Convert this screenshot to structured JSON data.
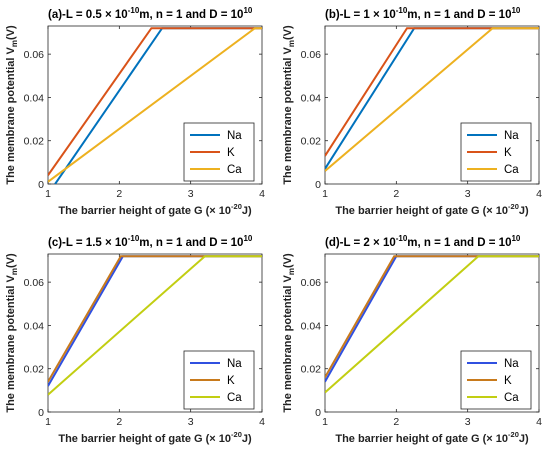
{
  "chart_data": [
    {
      "type": "line",
      "title": "(a)-L = 0.5 × 10",
      "title_exp": "-10",
      "title_rest": "m, n = 1 and  D = 10",
      "title_exp2": "10",
      "xlabel": "The barrier height of gate G (× 10",
      "xlabel_exp": "-20",
      "xlabel_end": "J)",
      "ylabel": "The membrane potential V",
      "ylabel_sub": "m",
      "ylabel_end": "(V)",
      "xlim": [
        1,
        4
      ],
      "ylim": [
        0,
        0.073
      ],
      "xticks": [
        "1",
        "2",
        "3",
        "4"
      ],
      "yticks": [
        "0",
        "0.02",
        "0.04",
        "0.06"
      ],
      "legend_position": "right",
      "series": [
        {
          "name": "Na",
          "color": "#0072BD",
          "points": [
            [
              1.1,
              0
            ],
            [
              2.6,
              0.072
            ],
            [
              4,
              0.072
            ]
          ]
        },
        {
          "name": "K",
          "color": "#D95319",
          "points": [
            [
              1,
              0.004
            ],
            [
              2.45,
              0.072
            ],
            [
              4,
              0.072
            ]
          ]
        },
        {
          "name": "Ca",
          "color": "#EDB120",
          "points": [
            [
              1,
              0.001
            ],
            [
              3.9,
              0.072
            ],
            [
              4,
              0.072
            ]
          ]
        }
      ]
    },
    {
      "type": "line",
      "title": "(b)-L = 1 × 10",
      "title_exp": "-10",
      "title_rest": "m, n = 1 and  D = 10",
      "title_exp2": "10",
      "xlabel": "The barrier height of gate G (× 10",
      "xlabel_exp": "-20",
      "xlabel_end": "J)",
      "ylabel": "The membrane potential V",
      "ylabel_sub": "m",
      "ylabel_end": "(V)",
      "xlim": [
        1,
        4
      ],
      "ylim": [
        0,
        0.073
      ],
      "xticks": [
        "1",
        "2",
        "3",
        "4"
      ],
      "yticks": [
        "0",
        "0.02",
        "0.04",
        "0.06"
      ],
      "legend_position": "right",
      "series": [
        {
          "name": "Na",
          "color": "#0072BD",
          "points": [
            [
              1,
              0.007
            ],
            [
              2.25,
              0.072
            ],
            [
              4,
              0.072
            ]
          ]
        },
        {
          "name": "K",
          "color": "#D95319",
          "points": [
            [
              1,
              0.013
            ],
            [
              2.15,
              0.072
            ],
            [
              4,
              0.072
            ]
          ]
        },
        {
          "name": "Ca",
          "color": "#EDB120",
          "points": [
            [
              1,
              0.006
            ],
            [
              3.35,
              0.072
            ],
            [
              4,
              0.072
            ]
          ]
        }
      ]
    },
    {
      "type": "line",
      "title": "(c)-L = 1.5 × 10",
      "title_exp": "-10",
      "title_rest": "m, n = 1 and  D = 10",
      "title_exp2": "10",
      "xlabel": "The barrier height of gate G (× 10",
      "xlabel_exp": "-20",
      "xlabel_end": "J)",
      "ylabel": "The membrane potential V",
      "ylabel_sub": "m",
      "ylabel_end": "(V)",
      "xlim": [
        1,
        4
      ],
      "ylim": [
        0,
        0.073
      ],
      "xticks": [
        "1",
        "2",
        "3",
        "4"
      ],
      "yticks": [
        "0",
        "0.02",
        "0.04",
        "0.06"
      ],
      "legend_position": "right",
      "series": [
        {
          "name": "Na",
          "color": "#3050E0",
          "points": [
            [
              1,
              0.012
            ],
            [
              2.05,
              0.072
            ],
            [
              4,
              0.072
            ]
          ]
        },
        {
          "name": "K",
          "color": "#C87A1C",
          "points": [
            [
              1,
              0.014
            ],
            [
              2.02,
              0.072
            ],
            [
              4,
              0.072
            ]
          ]
        },
        {
          "name": "Ca",
          "color": "#C2CE12",
          "points": [
            [
              1,
              0.008
            ],
            [
              3.2,
              0.072
            ],
            [
              4,
              0.072
            ]
          ]
        }
      ]
    },
    {
      "type": "line",
      "title": "(d)-L = 2 × 10",
      "title_exp": "-10",
      "title_rest": "m, n = 1 and  D = 10",
      "title_exp2": "10",
      "xlabel": "The barrier height of gate G (× 10",
      "xlabel_exp": "-20",
      "xlabel_end": "J)",
      "ylabel": "The membrane potential V",
      "ylabel_sub": "m",
      "ylabel_end": "(V)",
      "xlim": [
        1,
        4
      ],
      "ylim": [
        0,
        0.073
      ],
      "xticks": [
        "1",
        "2",
        "3",
        "4"
      ],
      "yticks": [
        "0",
        "0.02",
        "0.04",
        "0.06"
      ],
      "legend_position": "right",
      "series": [
        {
          "name": "Na",
          "color": "#3050E0",
          "points": [
            [
              1,
              0.014
            ],
            [
              2.0,
              0.072
            ],
            [
              4,
              0.072
            ]
          ]
        },
        {
          "name": "K",
          "color": "#C87A1C",
          "points": [
            [
              1,
              0.016
            ],
            [
              1.97,
              0.072
            ],
            [
              4,
              0.072
            ]
          ]
        },
        {
          "name": "Ca",
          "color": "#C2CE12",
          "points": [
            [
              1,
              0.009
            ],
            [
              3.15,
              0.072
            ],
            [
              4,
              0.072
            ]
          ]
        }
      ]
    }
  ]
}
